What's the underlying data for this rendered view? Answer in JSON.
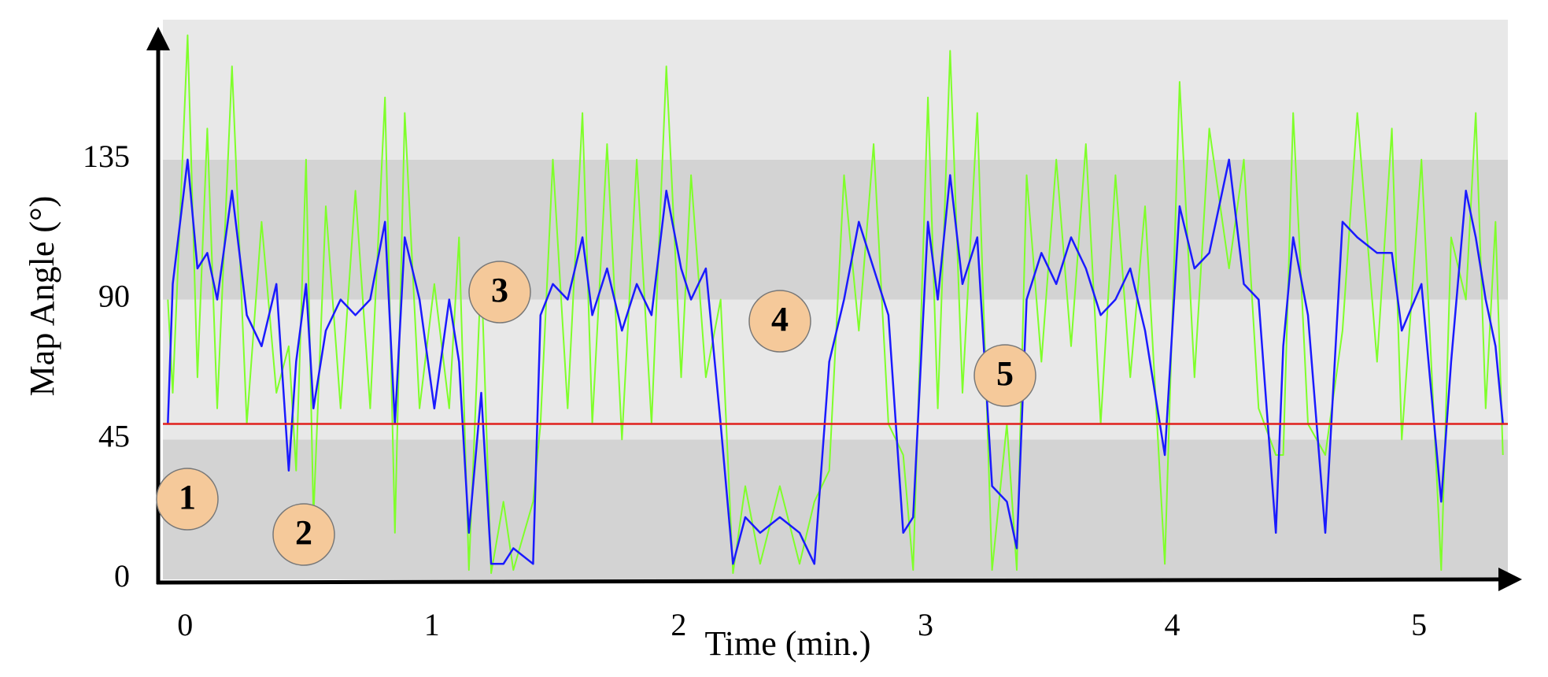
{
  "chart_data": {
    "type": "line",
    "x_label": "Time (min.)",
    "y_label": "Map Angle (°)",
    "xlim": [
      -0.09,
      5.36
    ],
    "ylim": [
      0,
      180
    ],
    "xticks": [
      0,
      1,
      2,
      3,
      4,
      5
    ],
    "yticks": [
      0,
      45,
      90,
      135
    ],
    "band_colors": [
      "#d3d3d3",
      "#e8e8e8"
    ],
    "threshold": 50,
    "threshold_color": "#e0201c",
    "annotations": [
      "1",
      "2",
      "3",
      "4",
      "5"
    ],
    "x": [
      -0.07,
      -0.05,
      0.01,
      0.05,
      0.09,
      0.13,
      0.19,
      0.25,
      0.31,
      0.37,
      0.42,
      0.45,
      0.49,
      0.52,
      0.57,
      0.63,
      0.69,
      0.75,
      0.81,
      0.85,
      0.89,
      0.95,
      1.01,
      1.07,
      1.11,
      1.15,
      1.2,
      1.24,
      1.29,
      1.33,
      1.41,
      1.44,
      1.49,
      1.55,
      1.61,
      1.65,
      1.71,
      1.77,
      1.83,
      1.89,
      1.95,
      2.01,
      2.05,
      2.11,
      2.17,
      2.22,
      2.27,
      2.33,
      2.41,
      2.49,
      2.55,
      2.61,
      2.67,
      2.73,
      2.79,
      2.85,
      2.91,
      2.95,
      3.01,
      3.05,
      3.1,
      3.15,
      3.21,
      3.27,
      3.33,
      3.37,
      3.41,
      3.47,
      3.53,
      3.59,
      3.65,
      3.71,
      3.77,
      3.83,
      3.89,
      3.97,
      4.03,
      4.09,
      4.15,
      4.23,
      4.29,
      4.35,
      4.42,
      4.45,
      4.49,
      4.55,
      4.62,
      4.69,
      4.75,
      4.83,
      4.89,
      4.93,
      5.01,
      5.09,
      5.13,
      5.19,
      5.23,
      5.27,
      5.31,
      5.34
    ],
    "series": [
      {
        "color": "#7fff2a",
        "values": [
          90,
          60,
          175,
          65,
          145,
          55,
          165,
          50,
          115,
          60,
          75,
          35,
          135,
          20,
          120,
          55,
          125,
          55,
          155,
          15,
          150,
          55,
          95,
          55,
          110,
          3,
          100,
          2,
          25,
          3,
          25,
          50,
          135,
          55,
          150,
          50,
          140,
          45,
          135,
          50,
          165,
          65,
          130,
          65,
          90,
          2,
          30,
          5,
          30,
          5,
          25,
          35,
          130,
          80,
          140,
          50,
          40,
          3,
          155,
          55,
          170,
          60,
          150,
          3,
          50,
          3,
          130,
          70,
          135,
          75,
          140,
          50,
          130,
          65,
          120,
          5,
          160,
          65,
          145,
          100,
          135,
          55,
          40,
          40,
          150,
          50,
          40,
          80,
          150,
          70,
          145,
          45,
          135,
          3,
          110,
          90,
          150,
          55,
          115,
          40
        ]
      },
      {
        "color": "#1a1aff",
        "values": [
          50,
          95,
          135,
          100,
          105,
          90,
          125,
          85,
          75,
          95,
          35,
          70,
          95,
          55,
          80,
          90,
          85,
          90,
          115,
          50,
          110,
          90,
          55,
          90,
          70,
          15,
          60,
          5,
          5,
          10,
          5,
          85,
          95,
          90,
          110,
          85,
          100,
          80,
          95,
          85,
          125,
          100,
          90,
          100,
          50,
          5,
          20,
          15,
          20,
          15,
          5,
          70,
          90,
          115,
          100,
          85,
          15,
          20,
          115,
          90,
          130,
          95,
          110,
          30,
          25,
          10,
          90,
          105,
          95,
          110,
          100,
          85,
          90,
          100,
          80,
          40,
          120,
          100,
          105,
          135,
          95,
          90,
          15,
          75,
          110,
          85,
          15,
          115,
          110,
          105,
          105,
          80,
          95,
          25,
          70,
          125,
          110,
          90,
          75,
          50
        ]
      }
    ]
  }
}
